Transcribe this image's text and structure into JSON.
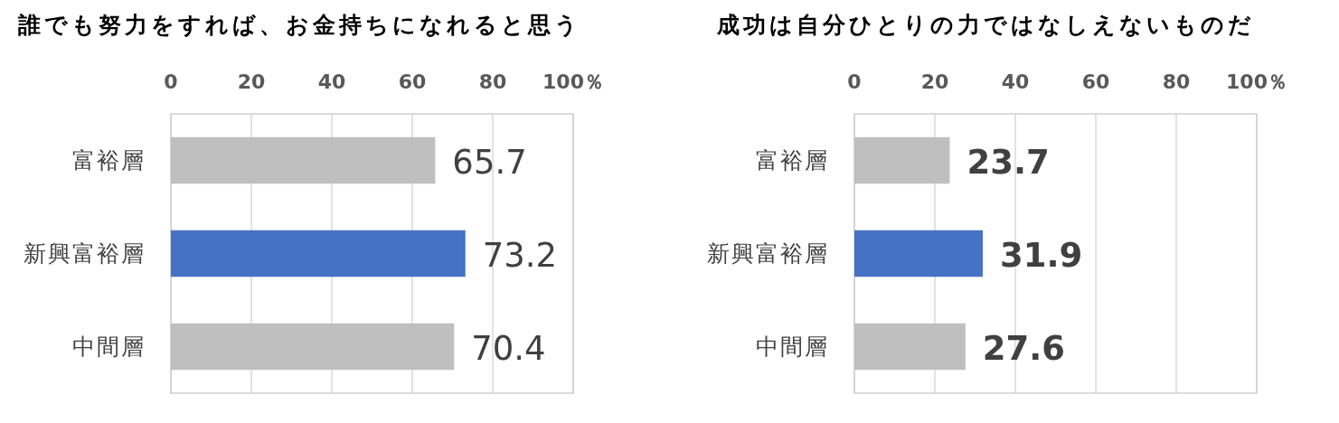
{
  "chart_data": [
    {
      "type": "bar",
      "orientation": "horizontal",
      "title": "誰でも努力をすれば、お金持ちになれると思う",
      "categories": [
        "富裕層",
        "新興富裕層",
        "中間層"
      ],
      "values": [
        65.7,
        73.2,
        70.4
      ],
      "colors": [
        "#bfbfbf",
        "#4472c4",
        "#bfbfbf"
      ],
      "xlim": [
        0,
        100
      ],
      "xticks": [
        0,
        20,
        40,
        60,
        80,
        {
          "value": 100,
          "label": "100％"
        }
      ],
      "grid": "x",
      "data_labels": true
    },
    {
      "type": "bar",
      "orientation": "horizontal",
      "title": "成功は自分ひとりの力ではなしえないものだ",
      "categories": [
        "富裕層",
        "新興富裕層",
        "中間層"
      ],
      "values": [
        23.7,
        31.9,
        27.6
      ],
      "colors": [
        "#bfbfbf",
        "#4472c4",
        "#bfbfbf"
      ],
      "xlim": [
        0,
        100
      ],
      "xticks": [
        0,
        20,
        40,
        60,
        80,
        {
          "value": 100,
          "label": "100％"
        }
      ],
      "grid": "x",
      "data_labels": true
    }
  ]
}
